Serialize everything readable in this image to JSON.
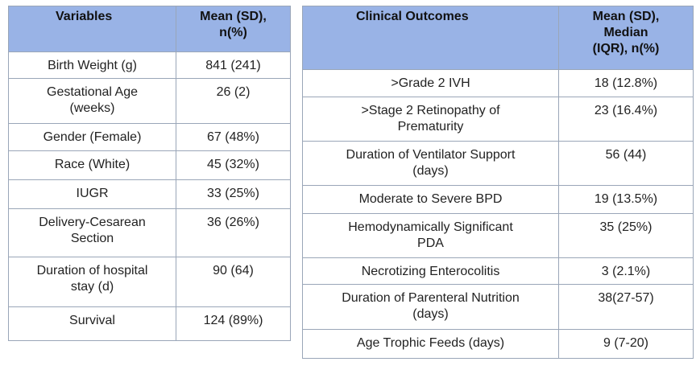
{
  "table1": {
    "headers": [
      "Variables",
      "Mean (SD),\nn(%)"
    ],
    "rows": [
      [
        "Birth Weight (g)",
        "841 (241)"
      ],
      [
        "Gestational Age\n(weeks)",
        "26 (2)"
      ],
      [
        "Gender (Female)",
        "67 (48%)"
      ],
      [
        "Race (White)",
        "45 (32%)"
      ],
      [
        "IUGR",
        "33 (25%)"
      ],
      [
        "Delivery-Cesarean\nSection",
        "36 (26%)"
      ],
      [
        "Duration of hospital\nstay (d)",
        "90 (64)"
      ],
      [
        "Survival",
        "124 (89%)"
      ]
    ]
  },
  "table2": {
    "headers": [
      "Clinical Outcomes",
      "Mean (SD),\nMedian\n(IQR),  n(%)"
    ],
    "rows": [
      [
        ">Grade 2 IVH",
        "18 (12.8%)"
      ],
      [
        ">Stage 2 Retinopathy of\nPrematurity",
        "23 (16.4%)"
      ],
      [
        "Duration of Ventilator Support\n(days)",
        "56 (44)"
      ],
      [
        "Moderate to Severe BPD",
        "19 (13.5%)"
      ],
      [
        "Hemodynamically Significant\nPDA",
        "35 (25%)"
      ],
      [
        "Necrotizing Enterocolitis",
        "3 (2.1%)"
      ],
      [
        "Duration of Parenteral Nutrition\n(days)",
        "38(27-57)"
      ],
      [
        "Age Trophic Feeds (days)",
        "9 (7-20)"
      ]
    ]
  }
}
